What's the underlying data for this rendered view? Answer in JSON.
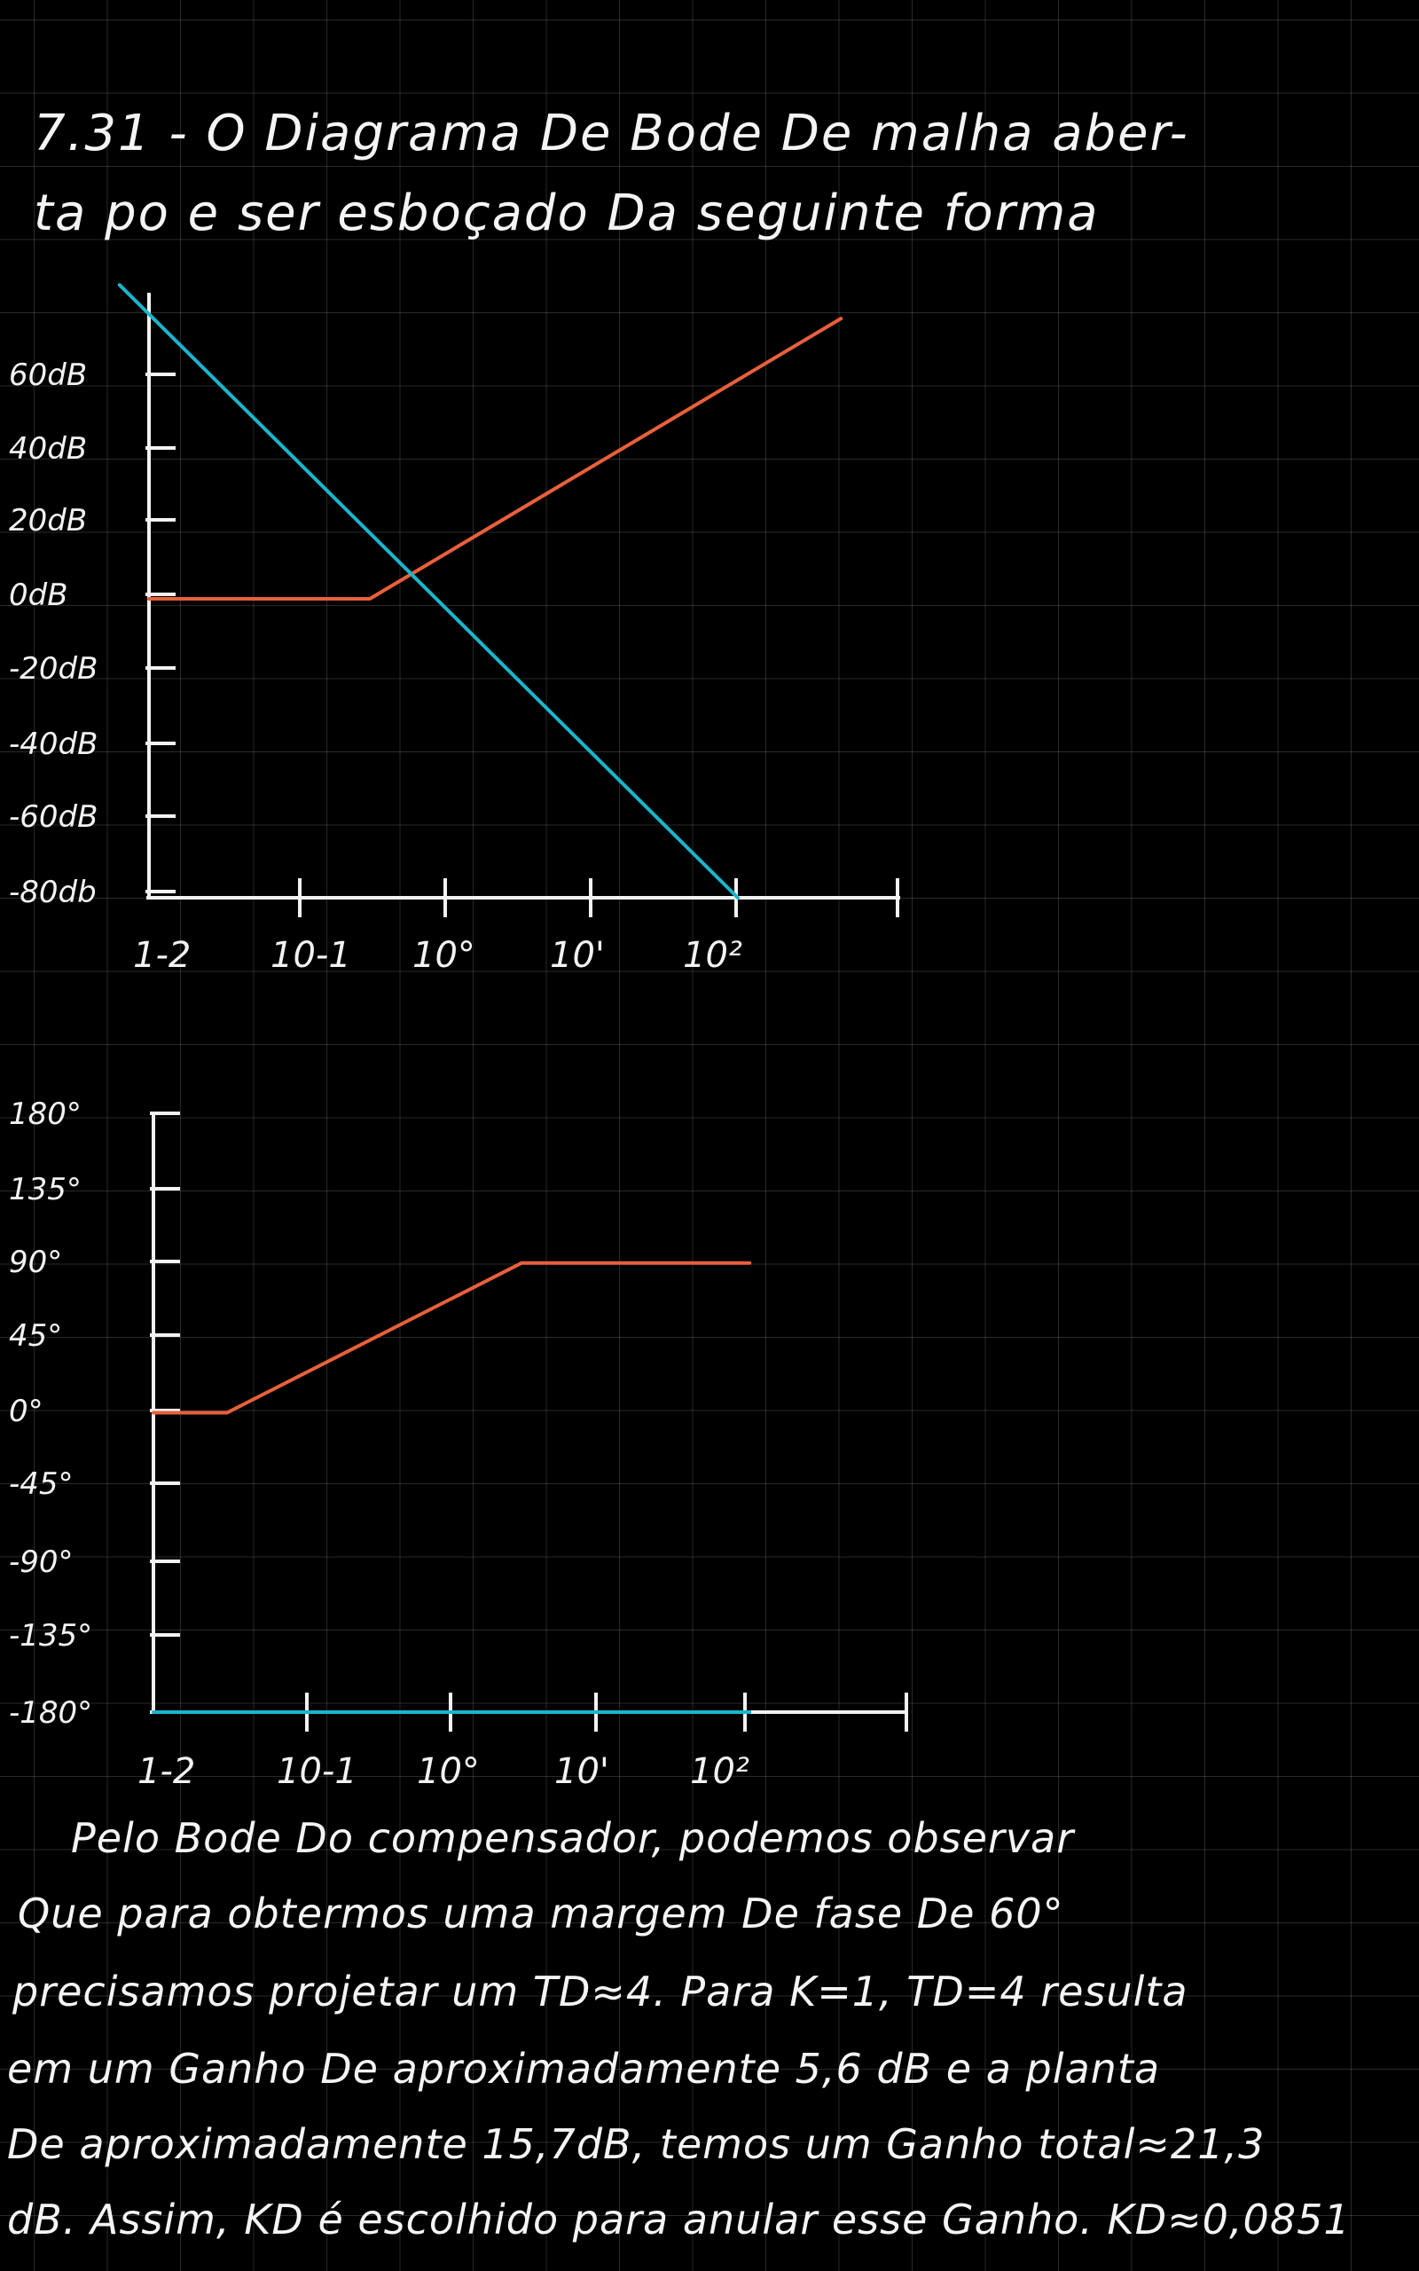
{
  "header": {
    "line1": "7.31 - O Diagrama De Bode De malha aber-",
    "line2": "ta po e ser esboçado Da seguinte forma"
  },
  "chart_data": [
    {
      "type": "line",
      "title": "",
      "ylabel": "",
      "xlabel": "",
      "x_ticks": [
        "1-2",
        "10-1",
        "10°",
        "10'",
        "10²"
      ],
      "y_ticks": [
        "60dB",
        "40dB",
        "20dB",
        "0dB",
        "-20dB",
        "-40dB",
        "-60dB",
        "-80db"
      ],
      "x_scale": "log",
      "xlim_decades": [
        -2,
        3
      ],
      "ylim": [
        -80,
        80
      ],
      "series": [
        {
          "color": "#e8603c",
          "points": [
            [
              -2,
              0
            ],
            [
              -0.5,
              0
            ],
            [
              2.7,
              75
            ]
          ]
        },
        {
          "color": "#1bb5cc",
          "points": [
            [
              -2.2,
              84
            ],
            [
              2,
              -80
            ]
          ]
        }
      ]
    },
    {
      "type": "line",
      "title": "",
      "ylabel": "",
      "xlabel": "",
      "x_ticks": [
        "1-2",
        "10-1",
        "10°",
        "10'",
        "10²"
      ],
      "y_ticks": [
        "180°",
        "135°",
        "90°",
        "45°",
        "0°",
        "-45°",
        "-90°",
        "-135°",
        "-180°"
      ],
      "x_scale": "log",
      "xlim_decades": [
        -2,
        3
      ],
      "ylim": [
        -180,
        180
      ],
      "series": [
        {
          "color": "#e8603c",
          "points": [
            [
              -2,
              0
            ],
            [
              -1.5,
              0
            ],
            [
              0.5,
              90
            ],
            [
              2.05,
              90
            ]
          ]
        },
        {
          "color": "#1bb5cc",
          "points": [
            [
              -2,
              -180
            ],
            [
              2.05,
              -180
            ]
          ]
        }
      ]
    }
  ],
  "paragraph": [
    "Pelo Bode Do compensador, podemos observar",
    "Que para obtermos uma margem De fase De 60°",
    "precisamos projetar um TD≈4. Para K=1, TD=4 resulta",
    "em um Ganho De aproximadamente 5,6 dB e a planta",
    "De aproximadamente 15,7dB, temos um Ganho total≈21,3",
    "dB. Assim, KD é escolhido para anular esse Ganho. KD≈0,0851"
  ]
}
